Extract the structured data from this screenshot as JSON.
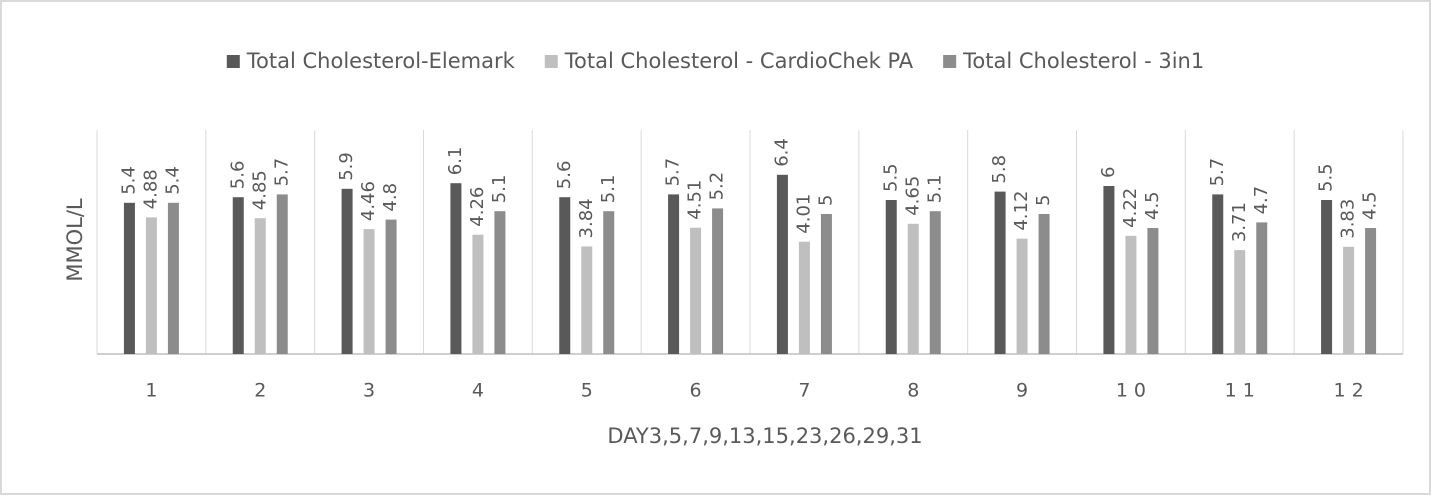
{
  "chart_data": {
    "type": "bar",
    "categories": [
      "1",
      "2",
      "3",
      "4",
      "5",
      "6",
      "7",
      "8",
      "9",
      "10",
      "11",
      "12"
    ],
    "series": [
      {
        "name": "Total Cholesterol-Elemark",
        "color": "#595959",
        "values": [
          5.4,
          5.6,
          5.9,
          6.1,
          5.6,
          5.7,
          6.4,
          5.5,
          5.8,
          6,
          5.7,
          5.5
        ]
      },
      {
        "name": "Total Cholesterol - CardioChek PA",
        "color": "#bfbfbf",
        "values": [
          4.88,
          4.85,
          4.46,
          4.26,
          3.84,
          4.51,
          4.01,
          4.65,
          4.12,
          4.22,
          3.71,
          3.83
        ]
      },
      {
        "name": "Total Cholesterol - 3in1",
        "color": "#8c8c8c",
        "values": [
          5.4,
          5.7,
          4.8,
          5.1,
          5.1,
          5.2,
          5,
          5.1,
          5,
          4.5,
          4.7,
          4.5
        ]
      }
    ],
    "xlabel": "DAY3,5,7,9,13,15,23,26,29,31",
    "ylabel": "MMOL/L",
    "ylim": [
      0,
      8
    ],
    "legend": "top"
  }
}
